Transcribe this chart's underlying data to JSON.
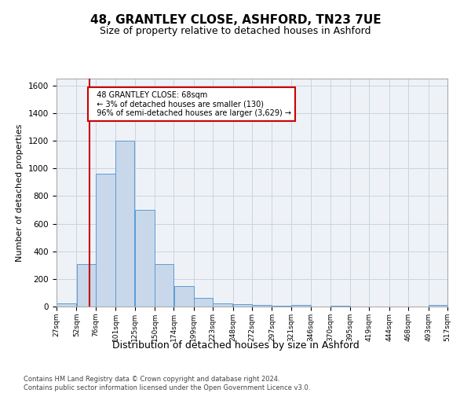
{
  "title_line1": "48, GRANTLEY CLOSE, ASHFORD, TN23 7UE",
  "title_line2": "Size of property relative to detached houses in Ashford",
  "xlabel": "Distribution of detached houses by size in Ashford",
  "ylabel": "Number of detached properties",
  "footnote": "Contains HM Land Registry data © Crown copyright and database right 2024.\nContains public sector information licensed under the Open Government Licence v3.0.",
  "bin_edges": [
    27,
    52,
    76,
    101,
    125,
    150,
    174,
    199,
    223,
    248,
    272,
    297,
    321,
    346,
    370,
    395,
    419,
    444,
    468,
    493,
    517
  ],
  "bar_heights": [
    25,
    305,
    960,
    1200,
    700,
    310,
    150,
    65,
    25,
    15,
    10,
    5,
    10,
    0,
    5,
    0,
    0,
    0,
    0,
    10
  ],
  "bar_color": "#c8d8ea",
  "bar_edge_color": "#5b9bd5",
  "property_size": 68,
  "vline_color": "#cc0000",
  "annotation_text": "  48 GRANTLEY CLOSE: 68sqm\n  ← 3% of detached houses are smaller (130)\n  96% of semi-detached houses are larger (3,629) →",
  "annotation_box_color": "white",
  "annotation_box_edge_color": "#cc0000",
  "ylim": [
    0,
    1650
  ],
  "yticks": [
    0,
    200,
    400,
    600,
    800,
    1000,
    1200,
    1400,
    1600
  ],
  "grid_color": "#c8d4e0",
  "background_color": "#ffffff",
  "plot_background": "#eef2f7"
}
